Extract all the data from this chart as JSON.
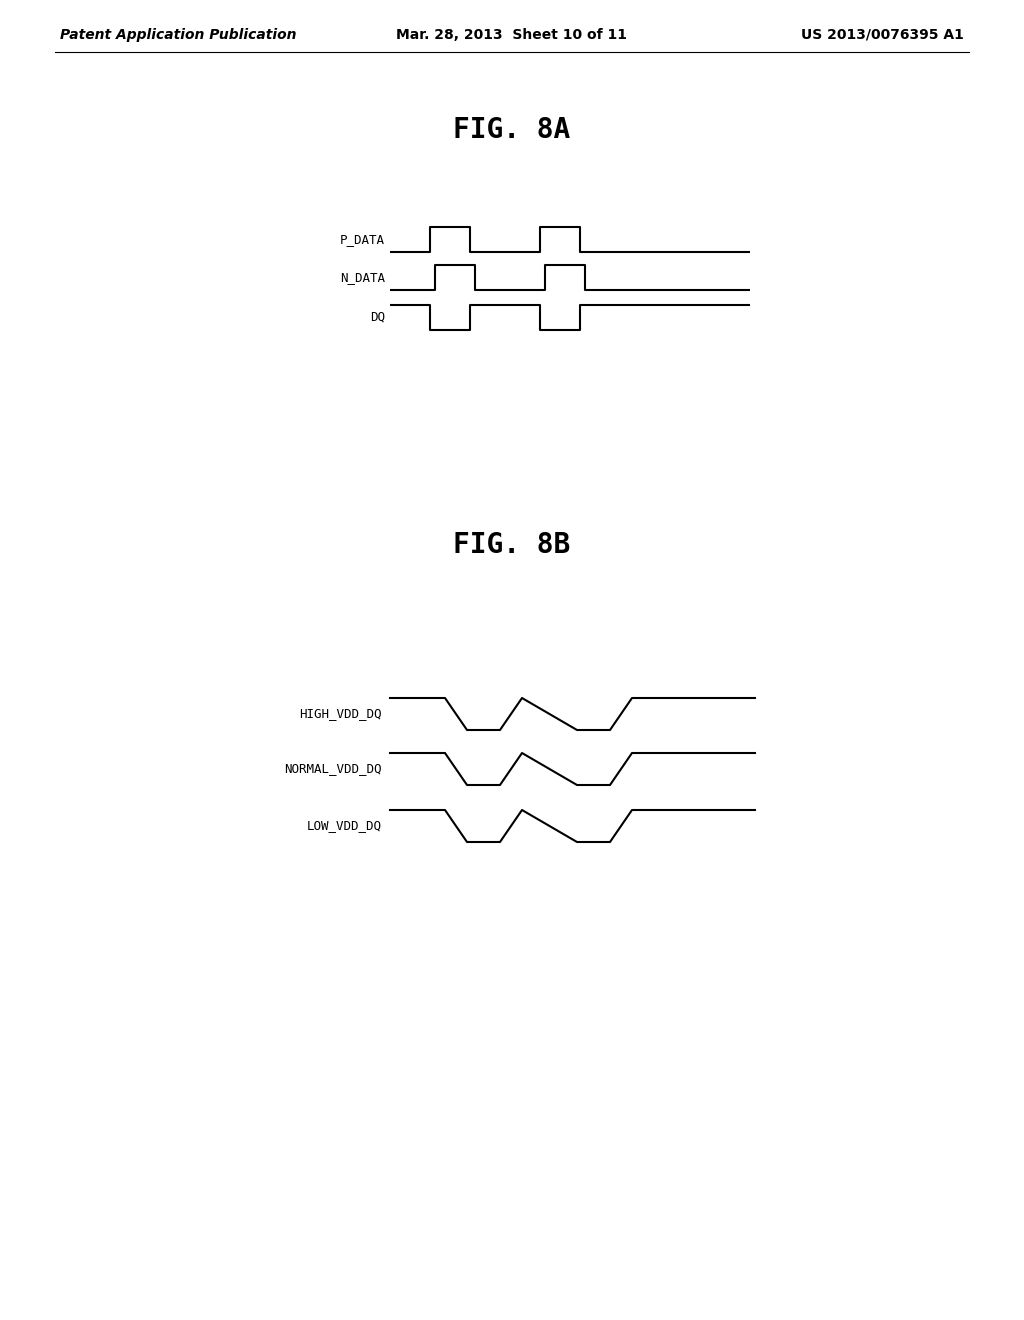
{
  "background_color": "#ffffff",
  "header_left": "Patent Application Publication",
  "header_mid": "Mar. 28, 2013  Sheet 10 of 11",
  "header_right": "US 2013/0076395 A1",
  "header_fontsize": 10,
  "fig8a_title": "FIG. 8A",
  "fig8b_title": "FIG. 8B",
  "line_color": "#000000",
  "line_width": 1.5,
  "label_fontsize": 9,
  "title_fontsize": 20
}
